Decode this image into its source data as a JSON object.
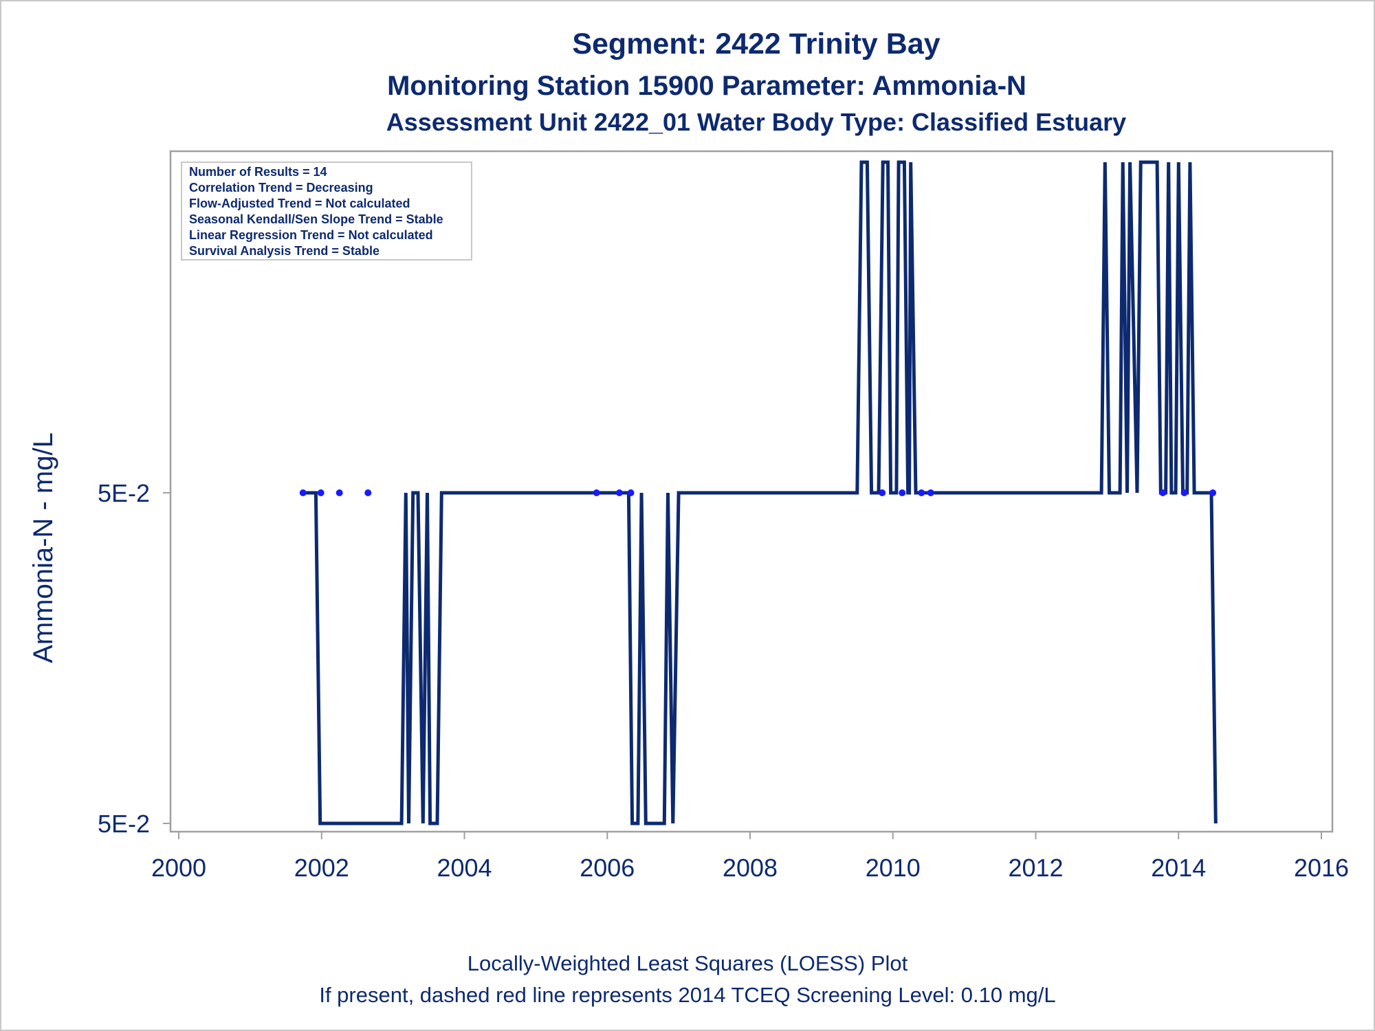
{
  "title": "Segment: 2422  Trinity Bay",
  "subtitle1": "Monitoring Station 15900 Parameter: Ammonia-N",
  "subtitle2": "Assessment Unit 2422_01   Water Body Type: Classified Estuary",
  "footnote1": "Locally-Weighted Least Squares (LOESS) Plot",
  "footnote2": "If present, dashed red line represents 2014 TCEQ Screening Level: 0.10 mg/L",
  "info_box": [
    "Number of Results = 14",
    "Correlation Trend = Decreasing",
    "Flow-Adjusted Trend = Not calculated",
    "Seasonal Kendall/Sen Slope Trend = Stable",
    "Linear Regression Trend = Not calculated",
    "Survival Analysis Trend = Stable"
  ],
  "colors": {
    "line": "#0d2a70",
    "points": "#1a1aff",
    "text": "#0d2a70",
    "frame": "#a0a0a0"
  },
  "chart_data": {
    "type": "line",
    "xlabel": "",
    "ylabel": "Ammonia-N - mg/L",
    "xlim": [
      2000,
      2016
    ],
    "x_ticks": [
      2000,
      2002,
      2004,
      2006,
      2008,
      2010,
      2012,
      2014,
      2016
    ],
    "y_axis_note": "both y tick labels read 5E-2; levels are a low band, a middle band and a top band",
    "ylim": [
      0,
      1
    ],
    "y_ticks": [
      {
        "level": 0,
        "label": "5E-2"
      },
      {
        "level": 0.5,
        "label": "5E-2"
      }
    ],
    "series": [
      {
        "style": "line",
        "points": [
          [
            2001.75,
            0.5
          ],
          [
            2001.92,
            0.5
          ],
          [
            2001.98,
            0
          ],
          [
            2003.12,
            0
          ],
          [
            2003.18,
            0.5
          ],
          [
            2003.22,
            0
          ],
          [
            2003.28,
            0.5
          ],
          [
            2003.35,
            0.5
          ],
          [
            2003.42,
            0
          ],
          [
            2003.48,
            0.5
          ],
          [
            2003.52,
            0
          ],
          [
            2003.62,
            0
          ],
          [
            2003.68,
            0.5
          ],
          [
            2006.3,
            0.5
          ],
          [
            2006.35,
            0
          ],
          [
            2006.43,
            0
          ],
          [
            2006.48,
            0.5
          ],
          [
            2006.54,
            0
          ],
          [
            2006.8,
            0
          ],
          [
            2006.85,
            0.5
          ],
          [
            2006.92,
            0
          ],
          [
            2007.0,
            0.5
          ],
          [
            2009.5,
            0.5
          ],
          [
            2009.56,
            1
          ],
          [
            2009.64,
            1
          ],
          [
            2009.7,
            0.5
          ],
          [
            2009.8,
            0.5
          ],
          [
            2009.86,
            1
          ],
          [
            2009.93,
            1
          ],
          [
            2009.97,
            0.5
          ],
          [
            2010.05,
            0.5
          ],
          [
            2010.08,
            1
          ],
          [
            2010.16,
            1
          ],
          [
            2010.21,
            0.5
          ],
          [
            2010.23,
            0.5
          ],
          [
            2010.25,
            1
          ],
          [
            2010.32,
            0.5
          ],
          [
            2012.92,
            0.5
          ],
          [
            2012.97,
            1
          ],
          [
            2013.03,
            0.5
          ],
          [
            2013.18,
            0.5
          ],
          [
            2013.22,
            1
          ],
          [
            2013.28,
            0.5
          ],
          [
            2013.32,
            1
          ],
          [
            2013.42,
            0.5
          ],
          [
            2013.47,
            1
          ],
          [
            2013.7,
            1
          ],
          [
            2013.75,
            0.5
          ],
          [
            2013.82,
            0.5
          ],
          [
            2013.86,
            1
          ],
          [
            2013.9,
            0.5
          ],
          [
            2013.96,
            0.5
          ],
          [
            2014.0,
            1
          ],
          [
            2014.06,
            0.5
          ],
          [
            2014.12,
            0.5
          ],
          [
            2014.16,
            1
          ],
          [
            2014.22,
            0.5
          ],
          [
            2014.46,
            0.5
          ],
          [
            2014.52,
            0
          ]
        ]
      },
      {
        "style": "points",
        "points": [
          [
            2001.74,
            0.5
          ],
          [
            2001.99,
            0.5
          ],
          [
            2002.25,
            0.5
          ],
          [
            2002.65,
            0.5
          ],
          [
            2005.85,
            0.5
          ],
          [
            2006.17,
            0.5
          ],
          [
            2006.33,
            0.5
          ],
          [
            2009.85,
            0.5
          ],
          [
            2010.13,
            0.5
          ],
          [
            2010.4,
            0.5
          ],
          [
            2010.53,
            0.5
          ],
          [
            2013.78,
            0.5
          ],
          [
            2014.08,
            0.5
          ],
          [
            2014.48,
            0.5
          ]
        ]
      }
    ]
  }
}
